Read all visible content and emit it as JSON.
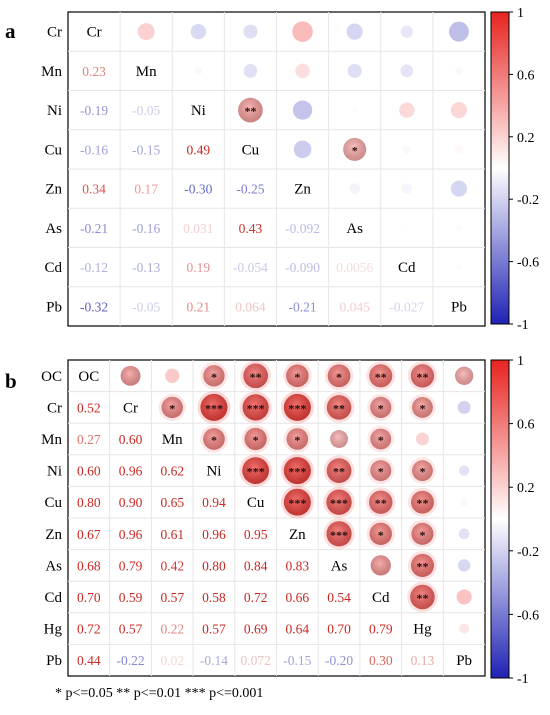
{
  "footnote": "* p<=0.05  ** p<=0.01  *** p<=0.001",
  "colorbar_ticks": [
    "1",
    "0.6",
    "0.2",
    "-0.2",
    "-0.6",
    "-1"
  ],
  "colors": {
    "positive": "#e8231f",
    "negative": "#1f22b4",
    "neutral": "#ffffff"
  },
  "chart_data": [
    {
      "type": "heatmap",
      "panel_label": "a",
      "variables": [
        "Cr",
        "Mn",
        "Ni",
        "Cu",
        "Zn",
        "As",
        "Cd",
        "Pb"
      ],
      "lower_labels": [
        [],
        [
          "0.23"
        ],
        [
          "-0.19",
          "-0.05"
        ],
        [
          "-0.16",
          "-0.15",
          "0.49"
        ],
        [
          "0.34",
          "0.17",
          "-0.30",
          "-0.25"
        ],
        [
          "-0.21",
          "-0.16",
          "0.031",
          "0.43",
          "-0.092"
        ],
        [
          "-0.12",
          "-0.13",
          "0.19",
          "-0.054",
          "-0.090",
          "0.0056"
        ],
        [
          "-0.32",
          "-0.05",
          "0.21",
          "0.064",
          "-0.21",
          "0.045",
          "-0.027"
        ]
      ],
      "significance": {
        "2,3": "**",
        "3,5": "*"
      },
      "colorbar_range": [
        -1,
        1
      ]
    },
    {
      "type": "heatmap",
      "panel_label": "b",
      "variables": [
        "OC",
        "Cr",
        "Mn",
        "Ni",
        "Cu",
        "Zn",
        "As",
        "Cd",
        "Hg",
        "Pb"
      ],
      "lower_labels": [
        [],
        [
          "0.52"
        ],
        [
          "0.27",
          "0.60"
        ],
        [
          "0.60",
          "0.96",
          "0.62"
        ],
        [
          "0.80",
          "0.90",
          "0.65",
          "0.94"
        ],
        [
          "0.67",
          "0.96",
          "0.61",
          "0.96",
          "0.95"
        ],
        [
          "0.68",
          "0.79",
          "0.42",
          "0.80",
          "0.84",
          "0.83"
        ],
        [
          "0.70",
          "0.59",
          "0.57",
          "0.58",
          "0.72",
          "0.66",
          "0.54"
        ],
        [
          "0.72",
          "0.57",
          "0.22",
          "0.57",
          "0.69",
          "0.64",
          "0.70",
          "0.79"
        ],
        [
          "0.44",
          "-0.22",
          "0.02",
          "-0.14",
          "0.072",
          "-0.15",
          "-0.20",
          "0.30",
          "0.13"
        ]
      ],
      "significance": {
        "0,3": "*",
        "0,4": "**",
        "0,5": "*",
        "0,6": "*",
        "0,7": "**",
        "0,8": "**",
        "1,2": "*",
        "1,3": "***",
        "1,4": "***",
        "1,5": "***",
        "1,6": "**",
        "1,7": "*",
        "1,8": "*",
        "2,3": "*",
        "2,4": "*",
        "2,5": "*",
        "2,7": "*",
        "3,4": "***",
        "3,5": "***",
        "3,6": "**",
        "3,7": "*",
        "3,8": "*",
        "4,5": "***",
        "4,6": "***",
        "4,7": "**",
        "4,8": "**",
        "5,6": "***",
        "5,7": "*",
        "5,8": "*",
        "6,8": "**",
        "7,8": "**"
      },
      "colorbar_range": [
        -1,
        1
      ]
    }
  ]
}
